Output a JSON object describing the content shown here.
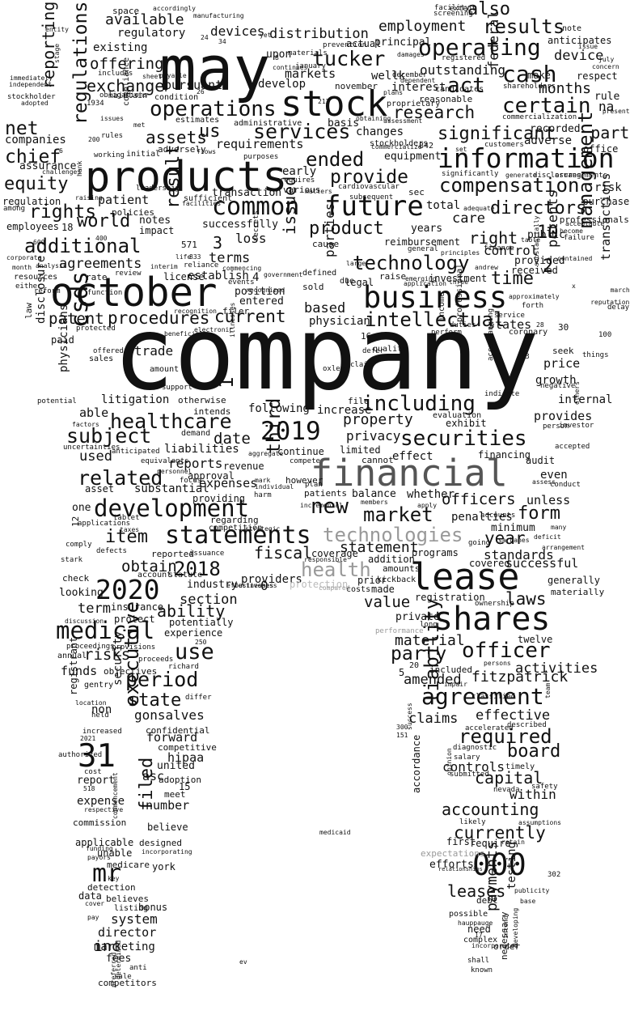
{
  "words": {
    "company": "company",
    "may": "may",
    "products": "products",
    "financial": "financial",
    "lease": "lease",
    "october": "october",
    "stock": "stock",
    "information": "information",
    "business": "business",
    "shares": "shares",
    "common": "common",
    "future": "future",
    "statements": "statements",
    "development": "development",
    "agreement": "agreement",
    "n2020": "2020",
    "n2019": "2019",
    "n2018": "2018",
    "n31": "31",
    "n000": "000",
    "medical": "medical",
    "operating": "operating",
    "cash": "cash",
    "csds": "csds",
    "healthcare": "healthcare",
    "securities": "securities",
    "technologies": "technologies",
    "technology": "technology",
    "compensation": "compensation",
    "operations": "operations",
    "services": "services",
    "executive": "executive",
    "management": "management",
    "liability": "liability",
    "officer": "officer",
    "new": "new",
    "regulations": "regulations",
    "tucker": "tucker",
    "act": "act",
    "certain": "certain",
    "results": "results",
    "employment": "employment",
    "also": "also",
    "ended": "ended",
    "provide": "provide",
    "additional": "additional",
    "product": "product",
    "directors": "directors",
    "intellectual": "intellectual",
    "including": "including",
    "subject": "subject",
    "related": "related",
    "item": "item",
    "market": "market",
    "form": "form",
    "required": "required",
    "board": "board",
    "capital": "capital",
    "accounting": "accounting",
    "currently": "currently",
    "mr": "mr",
    "period": "period",
    "use": "use",
    "risks": "risks",
    "state": "state",
    "party": "party",
    "material": "material",
    "filed": "filed",
    "net": "net",
    "equity": "equity",
    "chief": "chief",
    "rights": "rights",
    "patent": "patent",
    "procedures": "procedures",
    "current": "current",
    "issued": "issued",
    "result": "result",
    "research": "research",
    "significant": "significant",
    "assets": "assets",
    "us": "us",
    "world": "world",
    "agreements": "agreements",
    "offering": "offering",
    "exchange": "exchange",
    "available": "available",
    "reporting": "reporting",
    "time": "time",
    "right": "right",
    "care": "care",
    "part": "part",
    "federal": "federal",
    "months": "months",
    "device": "device",
    "patents": "patents",
    "transactions": "transactions",
    "value": "value",
    "laws": "laws",
    "health": "health",
    "third": "third",
    "fiscal": "fiscal",
    "year": "year",
    "obtain": "obtain",
    "ability": "ability",
    "section": "section",
    "term": "term",
    "terms": "terms",
    "loss": "loss",
    "parties": "parties",
    "property": "property",
    "privacy": "privacy",
    "date": "date",
    "used": "used",
    "reports": "reports",
    "expenses": "expenses",
    "statement": "statement",
    "officers": "officers",
    "standards": "standards",
    "successful": "successful",
    "amended": "amended",
    "fitzpatrick": "fitzpatrick",
    "activities": "activities",
    "claims": "claims",
    "effective": "effective",
    "controls": "controls",
    "within": "within",
    "leases": "leases",
    "payments": "payments",
    "testing": "testing",
    "inc": "inc",
    "system": "system",
    "director": "director",
    "marketing": "marketing",
    "fees": "fees",
    "hipaa": "hipaa",
    "united": "united",
    "asc": "asc",
    "number": "number",
    "report": "report",
    "expense": "expense",
    "gonsalves": "gonsalves",
    "forward": "forward",
    "security": "security",
    "registrant": "registrant",
    "non": "non",
    "funds": "funds",
    "disclosure": "disclosure",
    "physicians": "physicians",
    "trade": "trade",
    "litigation": "litigation",
    "employees": "employees",
    "patient": "patient",
    "early": "early",
    "devices": "devices",
    "distribution": "distribution",
    "regulatory": "regulatory",
    "markets": "markets",
    "pursuant": "pursuant",
    "companies": "companies",
    "requirements": "requirements",
    "changes": "changes",
    "equipment": "equipment",
    "adverse": "adverse",
    "recorded": "recorded",
    "office": "office",
    "risk": "risk",
    "purchase": "purchase",
    "professionals": "professionals",
    "control": "control",
    "states": "states",
    "provided": "provided",
    "public": "public",
    "received": "received",
    "investment": "investment",
    "total": "total",
    "years": "years",
    "based": "based",
    "physician": "physician",
    "entered": "entered",
    "position": "position",
    "establish": "establish",
    "license": "license",
    "successfully": "successfully",
    "transaction": "transaction",
    "impact": "impact",
    "notes": "notes",
    "policies": "policies",
    "rate": "rate",
    "assurance": "assurance",
    "regulation": "regulation",
    "outstanding": "outstanding",
    "interest": "interest",
    "principal": "principal",
    "actual": "actual",
    "make": "make",
    "rule": "rule",
    "respect": "respect",
    "anticipates": "anticipates",
    "note": "note",
    "existing": "existing",
    "space": "space",
    "reimbursement": "reimbursement",
    "cause": "cause",
    "defined": "defined",
    "sold": "sold",
    "raise": "raise",
    "legal": "legal",
    "price": "price",
    "growth": "growth",
    "seek": "seek",
    "internal": "internal",
    "provides": "provides",
    "able": "able",
    "following": "following",
    "increase": "increase",
    "file": "file",
    "liabilities": "liabilities",
    "continue": "continue",
    "limited": "limited",
    "effect": "effect",
    "cannot": "cannot",
    "financing": "financing",
    "audit": "audit",
    "even": "even",
    "unless": "unless",
    "whether": "whether",
    "balance": "balance",
    "penalties": "penalties",
    "minimum": "minimum",
    "revenue": "revenue",
    "approval": "approval",
    "providing": "providing",
    "substantial": "substantial",
    "asset": "asset",
    "one": "one",
    "patients": "patients",
    "however": "however",
    "coverage": "coverage",
    "addition": "addition",
    "amounts": "amounts",
    "made": "made",
    "costs": "costs",
    "prior": "prior",
    "kickback": "kickback",
    "registration": "registration",
    "private": "private",
    "included": "included",
    "twelve": "twelve",
    "programs": "programs",
    "covered": "covered",
    "generally": "generally",
    "materially": "materially",
    "industry": "industry",
    "providers": "providers",
    "protection": "protection",
    "reported": "reported",
    "account": "account",
    "statute": "statute",
    "looking": "looking",
    "check": "check",
    "insurance": "insurance",
    "protect": "protect",
    "potentially": "potentially",
    "experience": "experience",
    "objectives": "objectives",
    "proceeds": "proceeds",
    "gentry": "gentry",
    "competitive": "competitive",
    "confidential": "confidential",
    "adoption": "adoption",
    "meet": "meet",
    "believe": "believe",
    "designed": "designed",
    "applicable": "applicable",
    "unable": "unable",
    "medicare": "medicare",
    "york": "york",
    "detection": "detection",
    "believes": "believes",
    "listing": "listing",
    "bonus": "bonus",
    "data": "data",
    "competitors": "competitors",
    "anti": "anti",
    "sale": "sale",
    "accordance": "accordance",
    "first": "first",
    "require": "require",
    "expectations": "expectations",
    "efforts": "efforts",
    "debt": "debt",
    "possible": "possible",
    "need": "need",
    "order": "order",
    "complex": "complex",
    "shall": "shall",
    "known": "known",
    "necessary": "necessary",
    "likely": "likely",
    "timely": "timely",
    "safety": "safety",
    "nevada": "nevada",
    "salary": "salary",
    "diagnostic": "diagnostic",
    "submitted": "submitted",
    "classified": "classified",
    "accelerated": "accelerated",
    "described": "described",
    "exhibit": "exhibit",
    "evaluation": "evaluation",
    "otherwise": "otherwise",
    "intends": "intends",
    "demand": "demand",
    "amount": "amount",
    "support": "support",
    "sales": "sales",
    "offered": "offered",
    "paid": "paid",
    "law": "law",
    "protected": "protected",
    "income": "income",
    "professional": "professional",
    "duties": "duties",
    "perform": "perform",
    "quality": "quality",
    "defer": "defer",
    "coronary": "coronary",
    "service": "service",
    "forth": "forth",
    "delay": "delay",
    "things": "things",
    "negative": "negative",
    "investor": "investor",
    "person": "person",
    "accepted": "accepted",
    "conduct": "conduct",
    "assess": "assess",
    "many": "many",
    "deficit": "deficit",
    "arrangement": "arrangement",
    "arrangements": "arrangements",
    "stockholders": "stockholders",
    "basis": "basis",
    "shareholders": "shareholders",
    "reasonable": "reasonable",
    "proprietary": "proprietary",
    "candidates": "candidates",
    "commercialization": "commercialization",
    "customers": "customers",
    "screening": "screening",
    "facility": "facility",
    "extent": "extent",
    "disclosures": "disclosures",
    "significantly": "significantly",
    "generate": "generate",
    "cardiovascular": "cardiovascular",
    "subsequent": "subsequent",
    "various": "various",
    "administrative": "administrative",
    "estimates": "estimates",
    "condition": "condition",
    "compliance": "compliance",
    "obligations": "obligations",
    "issues": "issues",
    "includes": "includes",
    "sheet": "sheet",
    "develop": "develop",
    "november": "november",
    "january": "january",
    "december": "december",
    "dependent": "dependent",
    "materials": "materials",
    "prevention": "prevention",
    "damages": "damages",
    "registered": "registered",
    "continues": "continues",
    "upon": "upon",
    "manufacturing": "manufacturing",
    "accordingly": "accordingly",
    "entity": "entity",
    "immediately": "immediately",
    "independent": "independent",
    "stockholder": "stockholder",
    "adopted": "adopted",
    "maintain": "maintain",
    "working": "working",
    "initial": "initial",
    "adversely": "adversely",
    "flows": "flows",
    "purposes": "purposes",
    "leadership": "leadership",
    "sufficient": "sufficient",
    "facilities": "facilities",
    "challenges": "challenges",
    "raising": "raising",
    "among": "among",
    "corporate": "corporate",
    "resources": "resources",
    "analysis": "analysis",
    "month": "month",
    "either": "either",
    "reform": "reform",
    "function": "function",
    "review": "review",
    "interim": "interim",
    "reliance": "reliance",
    "commencing": "commencing",
    "events": "events",
    "recognized": "recognized",
    "recognition": "recognition",
    "filer": "filer",
    "electronic": "electronic",
    "beneficial": "beneficial",
    "illnesses": "illnesses",
    "oxley": "oxley",
    "claim": "claim",
    "indicate": "indicate",
    "accompanying": "accompanying",
    "potential": "potential",
    "factors": "factors",
    "uncertainties": "uncertainties",
    "anticipated": "anticipated",
    "equivalents": "equivalents",
    "personnel": "personnel",
    "focus": "focus",
    "aggregate": "aggregate",
    "compete": "compete",
    "harm": "harm",
    "mark": "mark",
    "plan": "plan",
    "individual": "individual",
    "regarding": "regarding",
    "competition": "competition",
    "strategic": "strategic",
    "issuance": "issuance",
    "businesses": "businesses",
    "effectiveness": "effectiveness",
    "compared": "compared",
    "responsible": "responsible",
    "incremental": "incremental",
    "members": "members",
    "apply": "apply",
    "going": "going",
    "accounts": "accounts",
    "sarbanes": "sarbanes",
    "tablet": "tablet",
    "taxes": "taxes",
    "applications": "applications",
    "defects": "defects",
    "comply": "comply",
    "stark": "stark",
    "discussion": "discussion",
    "provisions": "provisions",
    "annual": "annual",
    "proceedings": "proceedings",
    "richard": "richard",
    "differ": "differ",
    "location": "location",
    "held": "held",
    "increased": "increased",
    "authorized": "authorized",
    "cost": "cost",
    "respective": "respective",
    "commission": "commission",
    "commencement": "commencement",
    "funding": "funding",
    "payors": "payors",
    "incorporating": "incorporating",
    "key": "key",
    "cover": "cover",
    "pay": "pay",
    "preferred": "preferred",
    "determined": "determined",
    "performance": "performance",
    "ownership": "ownership",
    "long": "long",
    "impair": "impair",
    "persons": "persons",
    "success": "success",
    "opinion": "opinion",
    "assumptions": "assumptions",
    "retain": "retain",
    "relationships": "relationships",
    "publicity": "publicity",
    "base": "base",
    "hauppauge": "hauppauge",
    "incorporated": "incorporated",
    "intend": "intend",
    "developing": "developing",
    "team": "team",
    "others": "others",
    "acceptable": "acceptable",
    "failure": "failure",
    "become": "become",
    "contained": "contained",
    "substantially": "substantially",
    "approximately": "approximately",
    "reputation": "reputation",
    "medicaid": "medicaid",
    "secrets": "secrets",
    "government": "government",
    "reliance2": "reliance",
    "wellk": "wellk",
    "commercialize": "commercialize",
    "principles": "principles",
    "general": "general",
    "emerging": "emerging",
    "application": "application",
    "finance": "finance",
    "table": "table",
    "present": "present",
    "concern": "concern",
    "july": "july",
    "issue": "issue",
    "stage": "stage",
    "hank": "hank",
    "rules": "rules",
    "payable": "payable",
    "sec": "sec",
    "set": "set",
    "na": "na",
    "three": "three",
    "andrew": "andrew",
    "march": "march",
    "adequate": "adequate",
    "due": "due",
    "large": "large",
    "obtaining": "obtaining",
    "assessment": "assessment",
    "plans": "plans",
    "life": "life",
    "matters": "matters",
    "requires": "requires",
    "yet": "yet",
    "met": "met",
    "n1934": "1934",
    "n1": "1",
    "n2": "2",
    "n3": "3",
    "n4": "4",
    "n5": "5",
    "n6": "6",
    "n7": "7",
    "n8": "8",
    "n10": "10",
    "n12": "12",
    "n13": "13",
    "n15": "15",
    "n16": "16",
    "n17": "17",
    "n18": "18",
    "n20": "20",
    "n24": "24",
    "n26": "26",
    "n28": "28",
    "n30": "30",
    "n34": "34",
    "n100": "100",
    "n151": "151",
    "n200": "200",
    "n212": "212",
    "n250": "250",
    "n300": "300",
    "n302": "302",
    "n400": "400",
    "n518": "518",
    "n571": "571",
    "n600": "600",
    "n833": "833",
    "n842": "842",
    "n2021": "2021",
    "n0": "0",
    "x": "x",
    "ev": "ev"
  }
}
